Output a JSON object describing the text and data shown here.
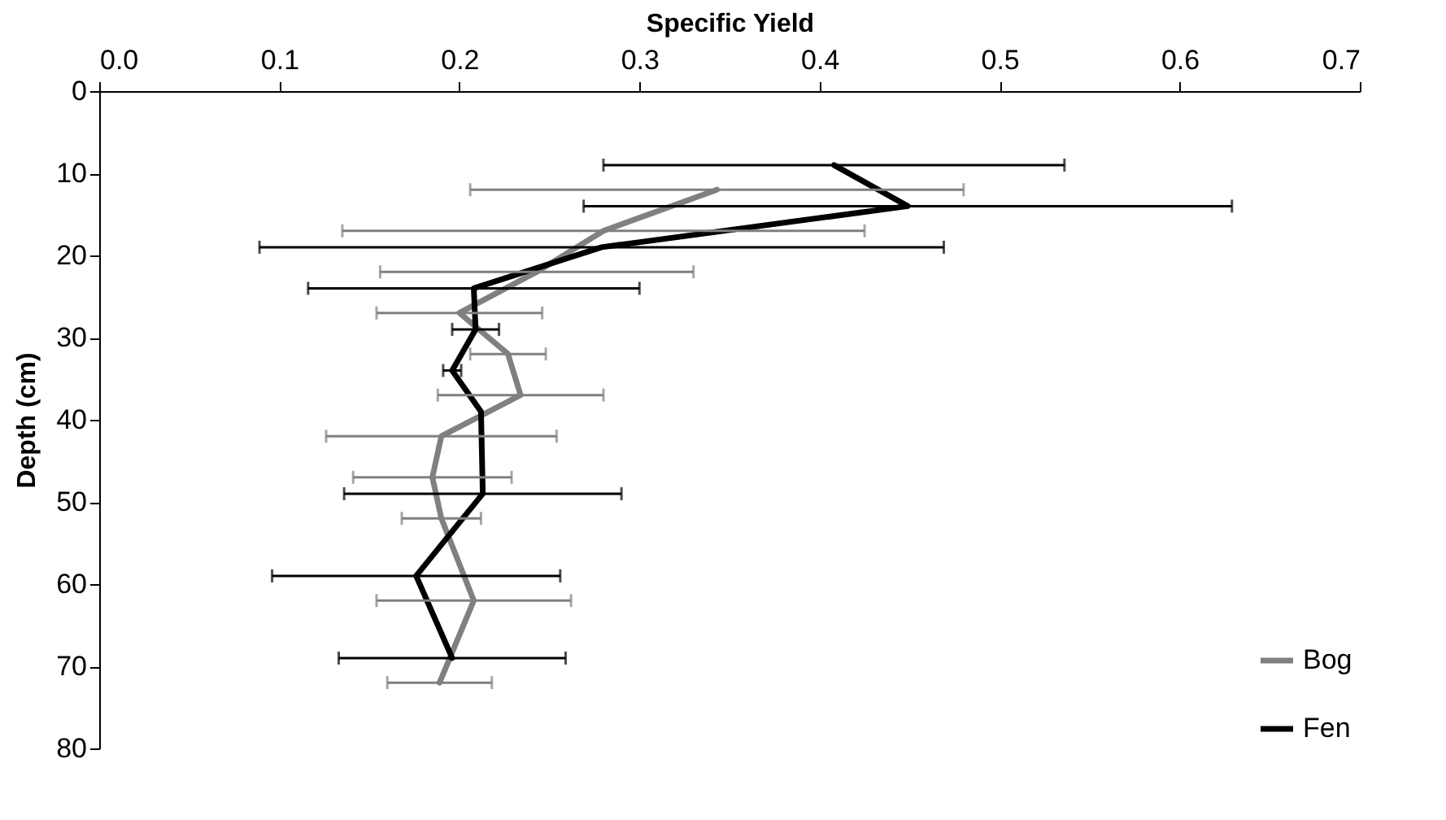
{
  "chart_data": {
    "type": "line",
    "xlabel": "Specific Yield",
    "ylabel": "Depth (cm)",
    "xlim": [
      0,
      0.7
    ],
    "xticks": [
      {
        "value": 0,
        "label": "0.0"
      },
      0.1,
      0.2,
      0.3,
      0.4,
      0.5,
      0.6,
      0.7
    ],
    "ylim": [
      80,
      0
    ],
    "yticks": [
      0,
      10,
      20,
      30,
      40,
      50,
      60,
      70,
      80
    ],
    "legend": "bottom right",
    "series": [
      {
        "name": "Bog",
        "color": "#808080",
        "x": [
          0.343,
          0.28,
          0.243,
          0.2,
          0.227,
          0.234,
          0.19,
          0.185,
          0.19,
          0.208,
          0.189
        ],
        "values": [
          12,
          17,
          22,
          27,
          32,
          37,
          42,
          47,
          52,
          62,
          72
        ],
        "xerrors": [
          0.137,
          0.145,
          0.087,
          0.046,
          0.021,
          0.046,
          0.064,
          0.044,
          0.022,
          0.054,
          0.029
        ]
      },
      {
        "name": "Fen",
        "color": "#000000",
        "x": [
          0.408,
          0.449,
          0.279,
          0.208,
          0.209,
          0.196,
          0.212,
          0.213,
          0.176,
          0.196
        ],
        "values": [
          9,
          14,
          19,
          24,
          29,
          34,
          39,
          49,
          59,
          69
        ],
        "xerrors": [
          0.128,
          0.18,
          0.19,
          0.092,
          0.013,
          0.005,
          null,
          0.077,
          0.08,
          0.063
        ]
      }
    ]
  }
}
